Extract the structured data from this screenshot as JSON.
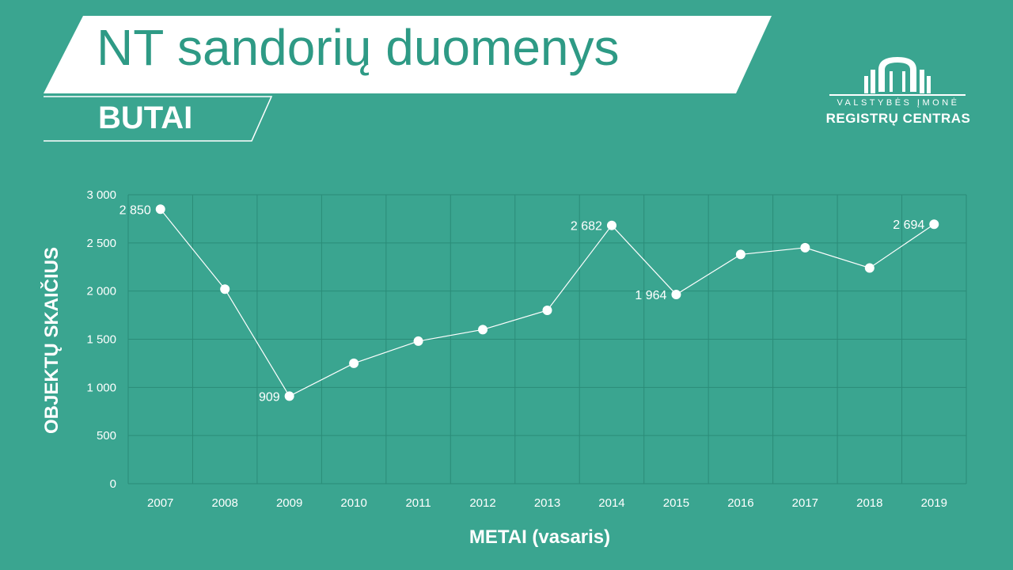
{
  "header": {
    "title": "NT sandorių duomenys",
    "subtitle": "BUTAI"
  },
  "logo": {
    "line1": "VALSTYBĖS ĮMONĖ",
    "line2": "REGISTRŲ CENTRAS"
  },
  "colors": {
    "background": "#3aa590",
    "title_text": "#2e9a85",
    "line": "#ffffff",
    "grid": "#2b8c78"
  },
  "chart_data": {
    "type": "line",
    "title": "",
    "xlabel": "METAI (vasaris)",
    "ylabel": "OBJEKTŲ SKAIČIUS",
    "ylim": [
      0,
      3000
    ],
    "y_ticks": [
      0,
      500,
      1000,
      1500,
      2000,
      2500,
      3000
    ],
    "y_tick_labels": [
      "0",
      "500",
      "1 000",
      "1 500",
      "2 000",
      "2 500",
      "3 000"
    ],
    "categories": [
      "2007",
      "2008",
      "2009",
      "2010",
      "2011",
      "2012",
      "2013",
      "2014",
      "2015",
      "2016",
      "2017",
      "2018",
      "2019"
    ],
    "series": [
      {
        "values": [
          2850,
          2020,
          909,
          1250,
          1480,
          1600,
          1800,
          2682,
          1964,
          2380,
          2450,
          2240,
          2694
        ]
      }
    ],
    "data_labels": [
      {
        "index": 0,
        "text": "2 850"
      },
      {
        "index": 2,
        "text": "909"
      },
      {
        "index": 7,
        "text": "2 682"
      },
      {
        "index": 8,
        "text": "1 964"
      },
      {
        "index": 12,
        "text": "2 694"
      }
    ],
    "grid": true,
    "legend": "none"
  }
}
